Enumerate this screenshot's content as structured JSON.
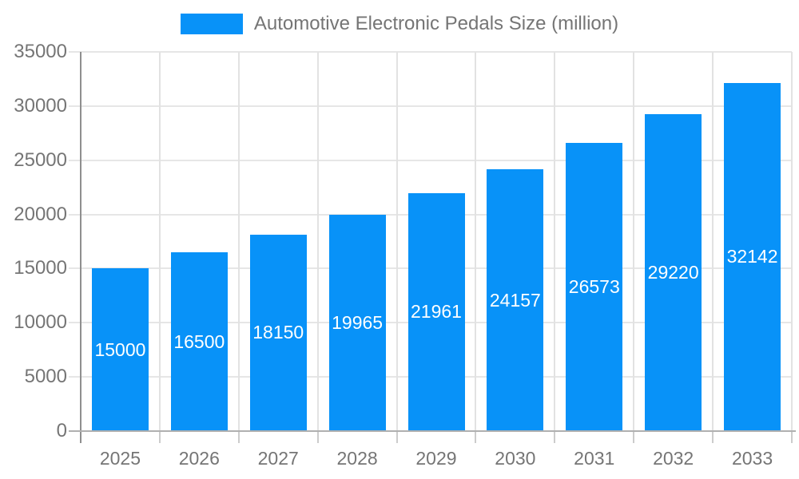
{
  "chart_data": {
    "type": "bar",
    "title": "Automotive Electronic Pedals Size (million)",
    "series_name": "Automotive Electronic Pedals Size (million)",
    "categories": [
      "2025",
      "2026",
      "2027",
      "2028",
      "2029",
      "2030",
      "2031",
      "2032",
      "2033"
    ],
    "values": [
      15000,
      16500,
      18150,
      19965,
      21961,
      24157,
      26573,
      29220,
      32142
    ],
    "bar_value_labels": [
      "15000",
      "16500",
      "18150",
      "19965",
      "21961",
      "24157",
      "26573",
      "29220",
      "32142"
    ],
    "xlabel": "",
    "ylabel": "",
    "ylim": [
      0,
      35000
    ],
    "yticks": [
      0,
      5000,
      10000,
      15000,
      20000,
      25000,
      30000,
      35000
    ],
    "grid": true,
    "legend_position": "top",
    "colors": {
      "bar": "#0892f8",
      "value_label": "#ffffff",
      "axis_text": "#757575",
      "legend_text": "#757575",
      "h_gridline": "#e6e6e6",
      "v_gridline": "#e2e2e2",
      "y_axis_line": "#8f8f8f",
      "x_baseline": "#b0b0b0",
      "tick": "#cccccc",
      "background": "#ffffff"
    }
  }
}
